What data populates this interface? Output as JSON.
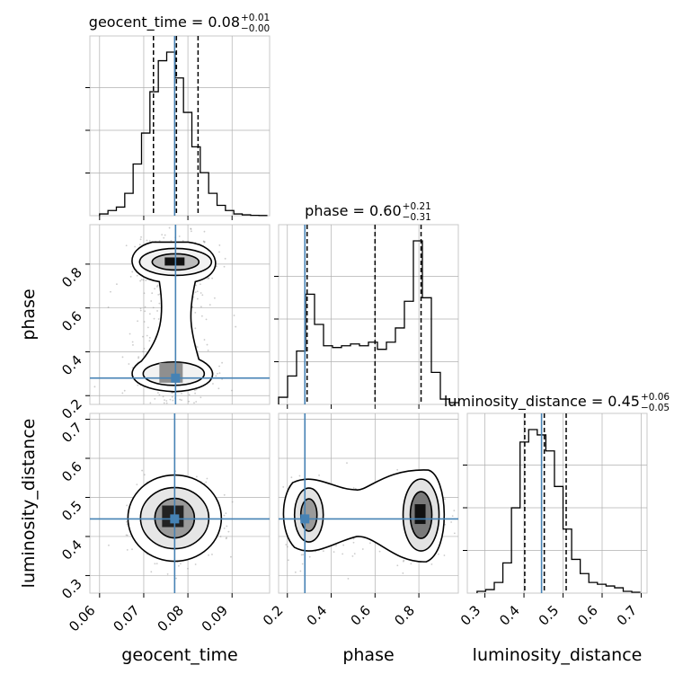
{
  "chart_data": {
    "type": "corner",
    "parameters": [
      "geocent_time",
      "phase",
      "luminosity_distance"
    ],
    "truth": {
      "geocent_time": 0.077,
      "phase": 0.28,
      "luminosity_distance": 0.445
    },
    "ranges": {
      "geocent_time": [
        0.0578,
        0.0985
      ],
      "phase": [
        0.16,
        0.98
      ],
      "luminosity_distance": [
        0.255,
        0.715
      ]
    },
    "ticks": {
      "geocent_time": [
        "0.06",
        "0.07",
        "0.08",
        "0.09"
      ],
      "phase": [
        "0.2",
        "0.4",
        "0.6",
        "0.8"
      ],
      "luminosity_distance": [
        "0.3",
        "0.4",
        "0.5",
        "0.6",
        "0.7"
      ]
    },
    "axis_labels": {
      "x": [
        "geocent_time",
        "phase",
        "luminosity_distance"
      ],
      "y": [
        "phase",
        "luminosity_distance"
      ]
    },
    "titles": [
      {
        "param": "geocent_time",
        "main": "geocent_time = 0.08",
        "plus": "+0.01",
        "minus": "−0.00"
      },
      {
        "param": "phase",
        "main": "phase = 0.60",
        "plus": "+0.21",
        "minus": "−0.31"
      },
      {
        "param": "luminosity_distance",
        "main": "luminosity_distance = 0.45",
        "plus": "+0.06",
        "minus": "−0.05"
      }
    ],
    "quantiles": {
      "geocent_time": [
        0.0722,
        0.0774,
        0.0823
      ],
      "phase": [
        0.29,
        0.6,
        0.81
      ],
      "luminosity_distance": [
        0.402,
        0.452,
        0.508
      ]
    },
    "histograms": {
      "geocent_time": {
        "bins": [
          0.06,
          0.0619,
          0.0638,
          0.0657,
          0.0676,
          0.0695,
          0.0714,
          0.0733,
          0.0752,
          0.0771,
          0.079,
          0.0809,
          0.0828,
          0.0847,
          0.0866,
          0.0885,
          0.0904,
          0.0923,
          0.0942,
          0.0961,
          0.098
        ],
        "counts": [
          0.01,
          0.03,
          0.05,
          0.13,
          0.3,
          0.48,
          0.72,
          0.9,
          0.95,
          0.8,
          0.6,
          0.4,
          0.25,
          0.13,
          0.06,
          0.03,
          0.01,
          0.005,
          0.002,
          0.001
        ]
      },
      "phase": {
        "bins": [
          0.16,
          0.201,
          0.242,
          0.283,
          0.324,
          0.365,
          0.406,
          0.447,
          0.488,
          0.529,
          0.57,
          0.611,
          0.652,
          0.693,
          0.734,
          0.775,
          0.816,
          0.857,
          0.898,
          0.939,
          0.98
        ],
        "counts": [
          0.04,
          0.16,
          0.3,
          0.62,
          0.45,
          0.33,
          0.32,
          0.33,
          0.34,
          0.33,
          0.35,
          0.31,
          0.35,
          0.43,
          0.58,
          0.92,
          0.6,
          0.18,
          0.03,
          0.01
        ]
      },
      "luminosity_distance": {
        "bins": [
          0.28,
          0.302,
          0.324,
          0.346,
          0.368,
          0.39,
          0.412,
          0.434,
          0.456,
          0.478,
          0.5,
          0.522,
          0.544,
          0.566,
          0.588,
          0.61,
          0.632,
          0.654,
          0.676,
          0.698
        ],
        "counts": [
          0.01,
          0.02,
          0.06,
          0.17,
          0.48,
          0.85,
          0.92,
          0.89,
          0.8,
          0.6,
          0.36,
          0.19,
          0.11,
          0.06,
          0.05,
          0.04,
          0.03,
          0.01,
          0.005
        ]
      }
    },
    "grid": true,
    "colors": {
      "truth": "#4682b4",
      "line": "#000000",
      "grid": "#b0b0b0",
      "frame": "#c8c8c8",
      "points": "#8c8c8c"
    }
  }
}
